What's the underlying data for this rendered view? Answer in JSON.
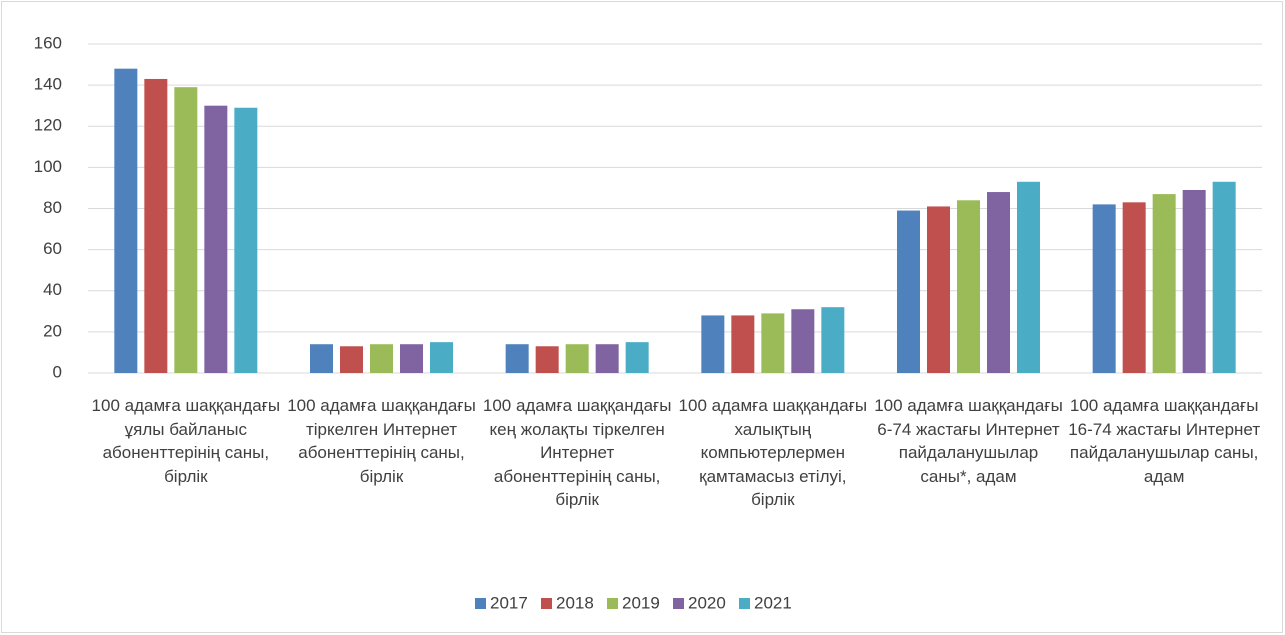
{
  "chart_data": {
    "type": "bar",
    "categories": [
      "100 адамға шаққандағы ұялы байланыс абоненттерінің саны, бірлік",
      "100 адамға шаққандағы тіркелген Интернет абоненттерінің саны, бірлік",
      "100 адамға шаққандағы кең жолақты тіркелген Интернет абоненттерінің саны, бірлік",
      "100 адамға шаққандағы халықтың компьютерлермен қамтамасыз етілуі, бірлік",
      "100 адамға шаққандағы 6-74 жастағы Интернет пайдаланушылар саны*, адам",
      "100 адамға шаққандағы 16-74 жастағы Интернет пайдаланушылар саны, адам"
    ],
    "series": [
      {
        "name": "2017",
        "color": "#4f81bd",
        "values": [
          148,
          14,
          14,
          28,
          79,
          82
        ]
      },
      {
        "name": "2018",
        "color": "#c0504d",
        "values": [
          143,
          13,
          13,
          28,
          81,
          83
        ]
      },
      {
        "name": "2019",
        "color": "#9bbb59",
        "values": [
          139,
          14,
          14,
          29,
          84,
          87
        ]
      },
      {
        "name": "2020",
        "color": "#8064a2",
        "values": [
          130,
          14,
          14,
          31,
          88,
          89
        ]
      },
      {
        "name": "2021",
        "color": "#4bacc6",
        "values": [
          129,
          15,
          15,
          32,
          93,
          93
        ]
      }
    ],
    "ylim": [
      0,
      160
    ],
    "yticks": [
      0,
      20,
      40,
      60,
      80,
      100,
      120,
      140,
      160
    ],
    "grid": true,
    "legend": "bottom"
  }
}
